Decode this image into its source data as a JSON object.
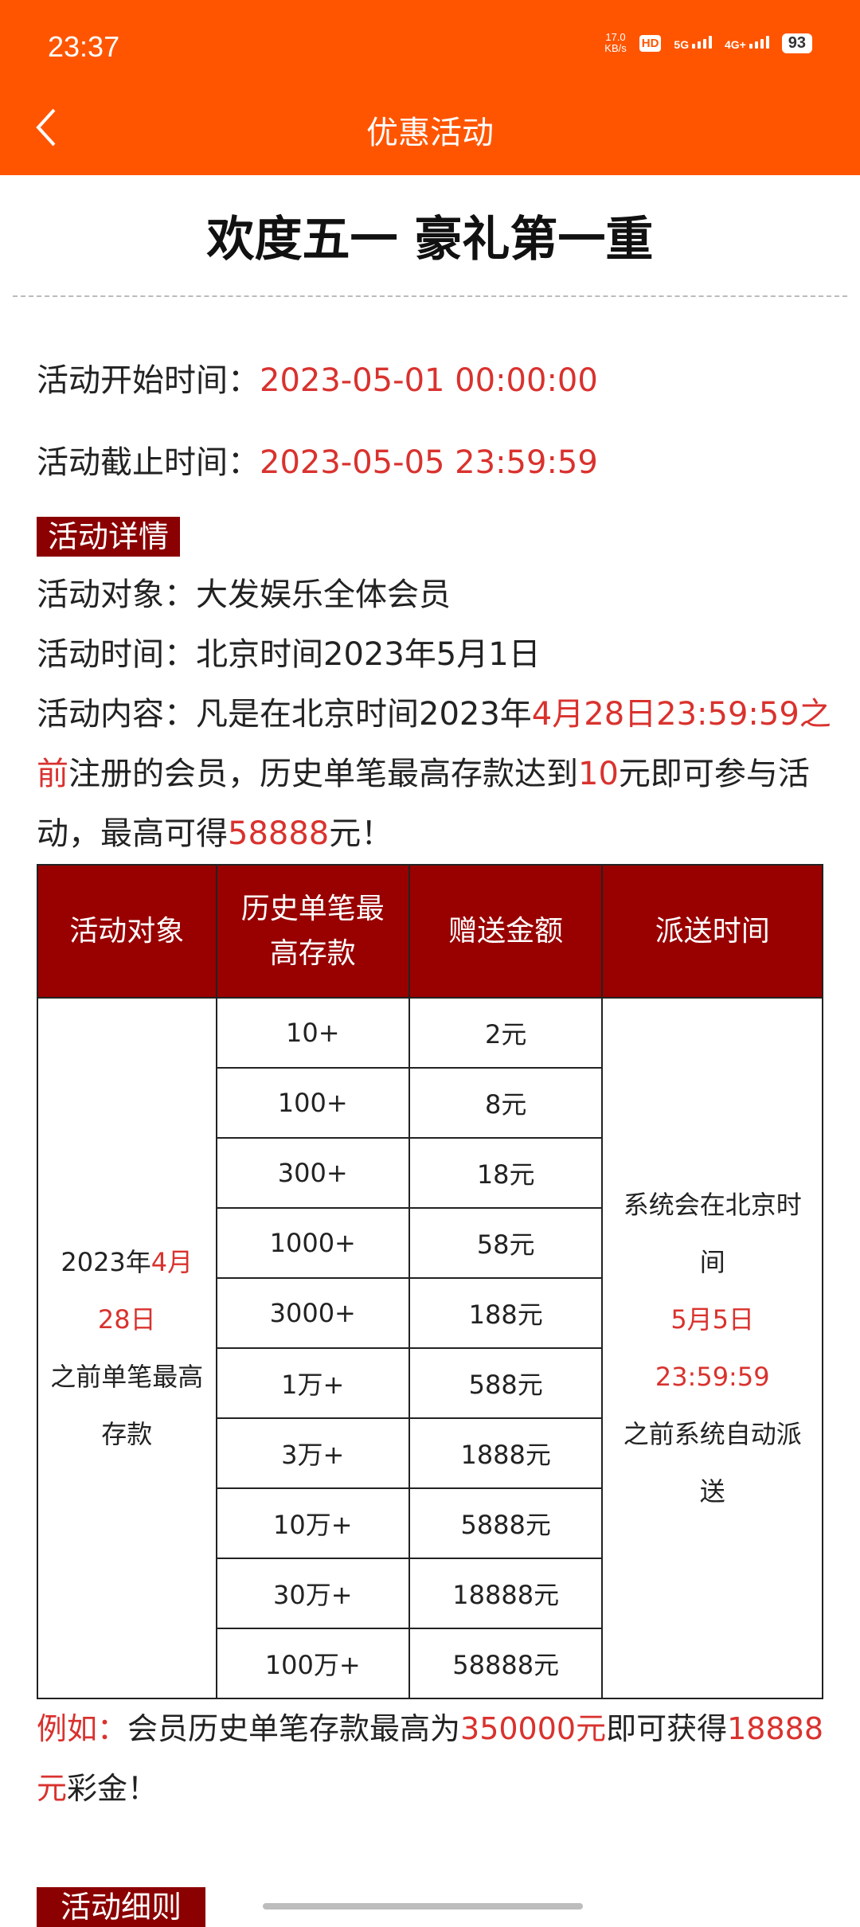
{
  "status_bar": {
    "time": "23:37",
    "speed": "17.0",
    "speed_unit": "KB/s",
    "hd": "HD",
    "sim": "1 2",
    "net1": "5G",
    "net2": "4G+",
    "battery": "93"
  },
  "header": {
    "title": "优惠活动",
    "back_icon": "chevron-left-icon"
  },
  "title": "欢度五一 豪礼第一重",
  "start": {
    "label": "活动开始时间：",
    "value": "2023-05-01 00:00:00"
  },
  "end": {
    "label": "活动截止时间：",
    "value": "2023-05-05 23:59:59"
  },
  "details_badge": "活动详情",
  "target": "活动对象：大发娱乐全体会员",
  "period": "活动时间：北京时间2023年5月1日",
  "content": {
    "p1": "活动内容：凡是在北京时间2023年",
    "r1": "4月28日23:59:59之前",
    "p2": "注册的会员，历史单笔最高存款达到",
    "r2": "10",
    "p3": "元即可参与活动，最高可得",
    "r3": "58888",
    "p4": "元！"
  },
  "table": {
    "headers": [
      "活动对象",
      "历史单笔最高存款",
      "赠送金额",
      "派送时间"
    ],
    "object": {
      "a": "2023年",
      "b": "4月28日",
      "c": "之前单笔最高存款"
    },
    "dispatch": {
      "a": "系统会在北京时间",
      "b": "5月5日23:59:59",
      "c": "之前系统自动派送"
    },
    "rows": [
      [
        "10+",
        "2元"
      ],
      [
        "100+",
        "8元"
      ],
      [
        "300+",
        "18元"
      ],
      [
        "1000+",
        "58元"
      ],
      [
        "3000+",
        "188元"
      ],
      [
        "1万+",
        "588元"
      ],
      [
        "3万+",
        "1888元"
      ],
      [
        "10万+",
        "5888元"
      ],
      [
        "30万+",
        "18888元"
      ],
      [
        "100万+",
        "58888元"
      ]
    ]
  },
  "example": {
    "label": "例如：",
    "p1": "会员历史单笔存款最高为",
    "r1": "350000元",
    "p2": "即可获得",
    "r2": "18888元",
    "p3": "彩金！"
  },
  "rules_badge": "活动细则",
  "colors": {
    "brand": "#FF5500",
    "accent_red": "#D9322E",
    "table_header": "#990000"
  }
}
